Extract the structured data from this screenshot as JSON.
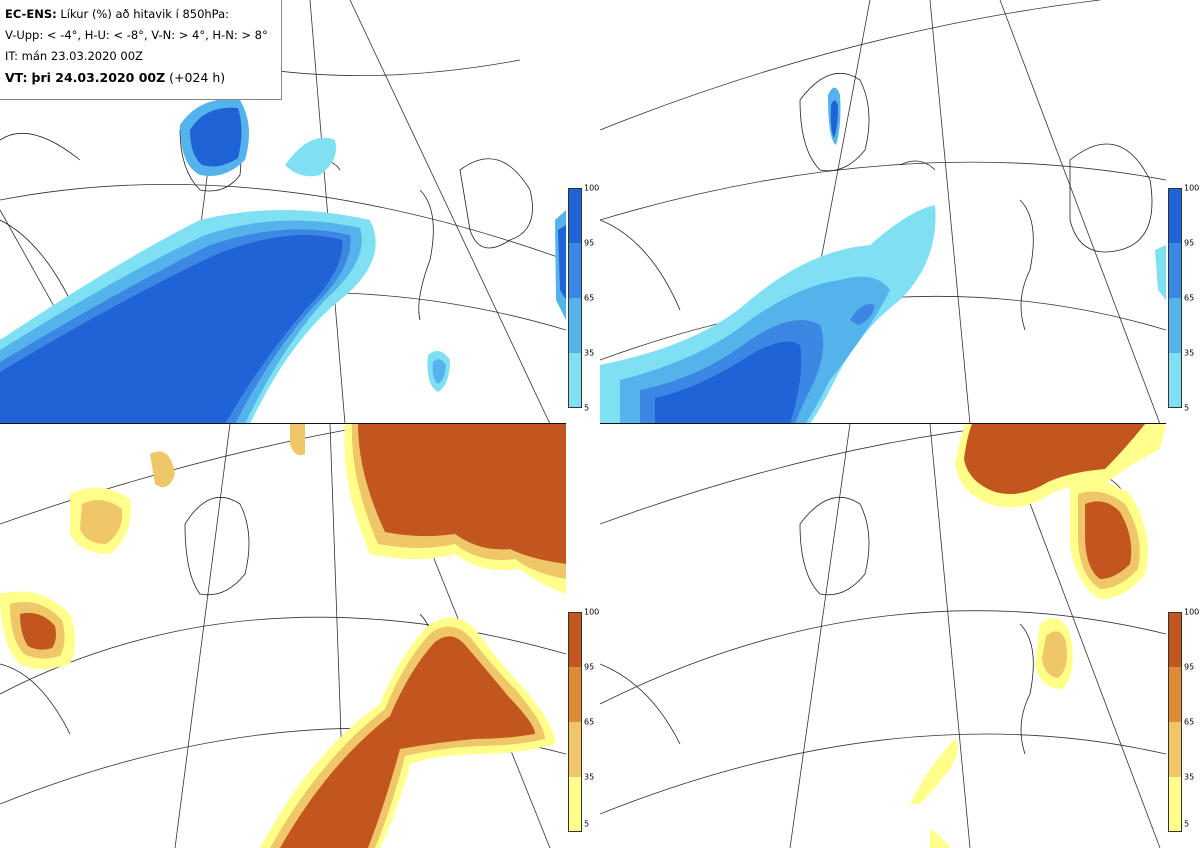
{
  "header": {
    "model": "EC-ENS:",
    "description": "Líkur (%) að hitavik í 850hPa:",
    "thresholds": "V-Upp: < -4°, H-U: < -8°, V-N: > 4°, H-N: > 8°",
    "issue_time": "IT: mán 23.03.2020 00Z",
    "valid_label": "VT:",
    "valid_time": "þri 24.03.2020 00Z",
    "lead": "(+024 h)"
  },
  "colorbars": {
    "cold": {
      "ticks": [
        "100",
        "95",
        "65",
        "35",
        "5"
      ],
      "colors": [
        "#1f63d6",
        "#3b87e3",
        "#55b3ec",
        "#7fe0f4"
      ]
    },
    "warm": {
      "ticks": [
        "100",
        "95",
        "65",
        "35",
        "5"
      ],
      "colors": [
        "#c2561f",
        "#dd8b37",
        "#f0c768",
        "#ffff8a"
      ]
    }
  },
  "panels": [
    {
      "id": "V-Upp",
      "scheme": "cold",
      "probability_range": [
        5,
        100
      ]
    },
    {
      "id": "H-U",
      "scheme": "cold",
      "probability_range": [
        5,
        100
      ]
    },
    {
      "id": "V-N",
      "scheme": "warm",
      "probability_range": [
        5,
        100
      ]
    },
    {
      "id": "H-N",
      "scheme": "warm",
      "probability_range": [
        5,
        100
      ]
    }
  ]
}
